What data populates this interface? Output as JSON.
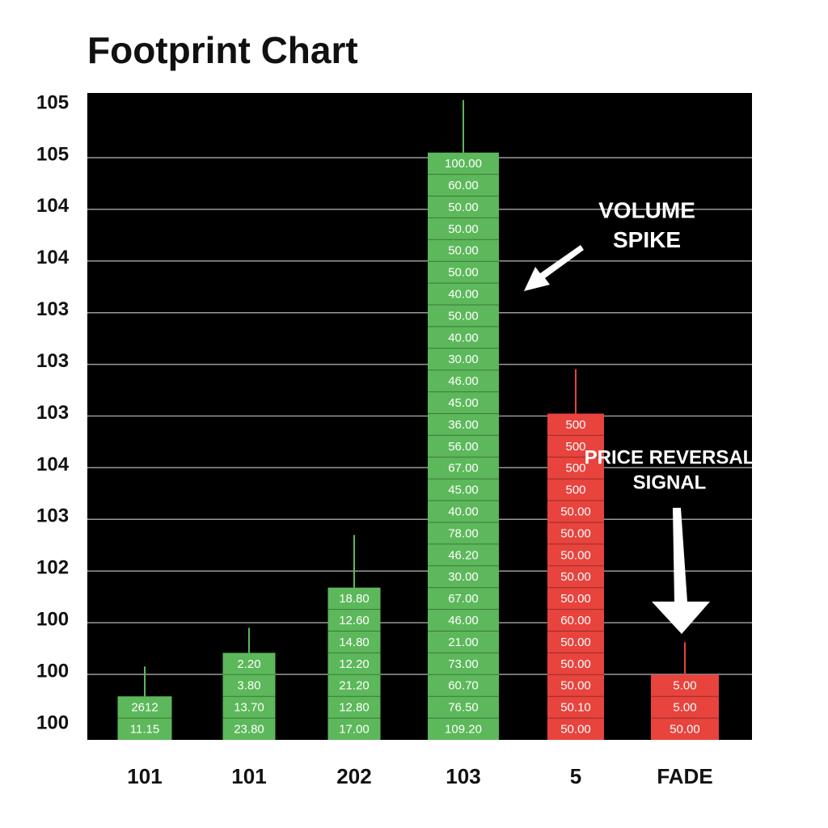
{
  "title": "Footprint Chart",
  "chart": {
    "type": "footprint",
    "y_labels": [
      "105",
      "105",
      "104",
      "104",
      "103",
      "103",
      "103",
      "104",
      "103",
      "102",
      "100",
      "100",
      "100"
    ],
    "grid": true,
    "columns": [
      {
        "label": "101",
        "color": "#5cb85a",
        "cells": [
          "2612",
          "11.15"
        ]
      },
      {
        "label": "101",
        "color": "#5cb85a",
        "cells": [
          "2.20",
          "3.80",
          "13.70",
          "23.80"
        ]
      },
      {
        "label": "202",
        "color": "#5cb85a",
        "cells": [
          "18.80",
          "12.60",
          "14.80",
          "12.20",
          "21.20",
          "12.80",
          "17.00"
        ]
      },
      {
        "label": "103",
        "color": "#5cb85a",
        "cells": [
          "100.00",
          "60.00",
          "50.00",
          "50.00",
          "50.00",
          "50.00",
          "40.00",
          "50.00",
          "40.00",
          "30.00",
          "46.00",
          "45.00",
          "36.00",
          "56.00",
          "67.00",
          "45.00",
          "40.00",
          "78.00",
          "46.20",
          "30.00",
          "67.00",
          "46.00",
          "21.00",
          "73.00",
          "60.70",
          "76.50",
          "109.20"
        ]
      },
      {
        "label": "5",
        "color": "#e8433d",
        "cells": [
          "500",
          "500",
          "500",
          "500",
          "50.00",
          "50.00",
          "50.00",
          "50.00",
          "50.00",
          "60.00",
          "50.00",
          "50.00",
          "50.00",
          "50.10",
          "50.00"
        ]
      },
      {
        "label": "FADE",
        "color": "#e8433d",
        "cells": [
          "5.00",
          "5.00",
          "50.00"
        ]
      }
    ],
    "annotations": [
      {
        "lines": [
          "VOLUME",
          "SPIKE"
        ]
      },
      {
        "lines": [
          "PRICE REVERSAL",
          "SIGNAL"
        ]
      }
    ]
  }
}
